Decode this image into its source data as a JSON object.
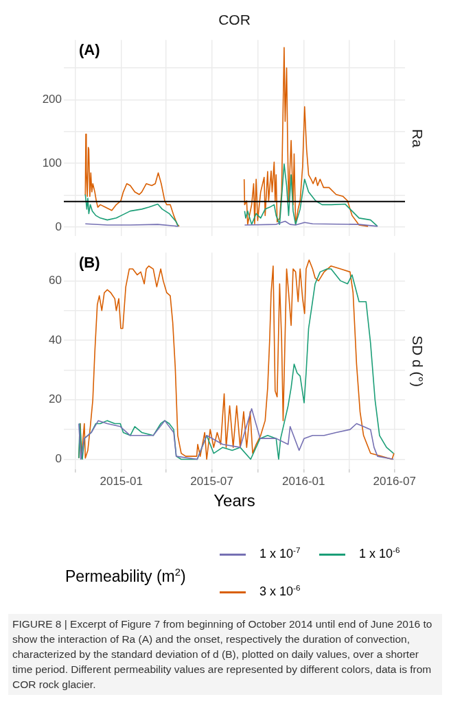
{
  "chart_data": [
    {
      "type": "line",
      "title": "COR",
      "ylabel": "Ra",
      "annotations": [
        "(A)"
      ],
      "tick_labels": "y",
      "grid": true,
      "legend": false,
      "marker": "none",
      "xlim": [
        "2014-09-08",
        "2016-07-22"
      ],
      "ylim": [
        -14,
        294
      ],
      "xticks": [
        {
          "value": "2014-10",
          "label": null
        },
        "2015-01",
        {
          "value": "2015-04",
          "label": null
        },
        "2015-07",
        {
          "value": "2015-10",
          "label": null
        },
        "2016-01",
        {
          "value": "2016-04",
          "label": null
        },
        "2016-07"
      ],
      "yticks": [
        0,
        {
          "value": 50,
          "label": null
        },
        100,
        {
          "value": 150,
          "label": null
        },
        200,
        {
          "value": 250,
          "label": null
        }
      ],
      "ref_lines": [
        {
          "axis": "y",
          "value": 40,
          "color": "#000000"
        }
      ],
      "series": [
        {
          "color": "#7570b3",
          "x": [
            "2014-10-21",
            "2014-12-04",
            "2015-01-19",
            "2015-03-15",
            "2015-04-25",
            "2015-06-01",
            "2015-09-05",
            "2015-11-07",
            "2015-11-25",
            "2015-12-05",
            "2015-12-16",
            "2016-01-03",
            "2016-01-19",
            "2016-04-21",
            "2016-05-28"
          ],
          "values": [
            5,
            3,
            3,
            4,
            1,
            null,
            3,
            4,
            9,
            4,
            3,
            7,
            5,
            4,
            1
          ]
        },
        {
          "color": "#1b9e77",
          "x": [
            "2014-10-21",
            "2014-10-24",
            "2014-10-26",
            "2014-10-28",
            "2014-10-31",
            "2014-11-04",
            "2014-11-11",
            "2014-11-20",
            "2014-12-04",
            "2014-12-22",
            "2015-01-01",
            "2015-01-19",
            "2015-02-11",
            "2015-02-25",
            "2015-03-15",
            "2015-03-24",
            "2015-04-07",
            "2015-04-21",
            "2015-04-25",
            "2015-06-01",
            "2015-09-05",
            "2015-09-07",
            "2015-09-11",
            "2015-09-19",
            "2015-09-28",
            "2015-10-07",
            "2015-10-16",
            "2015-10-25",
            "2015-11-03",
            "2015-11-07",
            "2015-11-14",
            "2015-11-23",
            "2015-11-28",
            "2015-12-02",
            "2015-12-07",
            "2015-12-11",
            "2015-12-16",
            "2015-12-25",
            "2016-01-03",
            "2016-01-11",
            "2016-01-25",
            "2016-02-07",
            "2016-02-26",
            "2016-03-24",
            "2016-04-07",
            "2016-04-21",
            "2016-05-14",
            "2016-05-28"
          ],
          "values": [
            51,
            28,
            45,
            21,
            35,
            25,
            18,
            14,
            11,
            14,
            18,
            25,
            28,
            31,
            36,
            28,
            21,
            8,
            1,
            null,
            25,
            14,
            25,
            4,
            21,
            14,
            28,
            31,
            35,
            18,
            4,
            99,
            65,
            18,
            82,
            25,
            4,
            28,
            75,
            55,
            41,
            35,
            35,
            36,
            25,
            14,
            11,
            1
          ]
        },
        {
          "color": "#d95f02",
          "x": [
            "2014-10-21",
            "2014-10-22",
            "2014-10-23",
            "2014-10-25",
            "2014-10-27",
            "2014-10-28",
            "2014-10-30",
            "2014-11-01",
            "2014-11-03",
            "2014-11-05",
            "2014-11-09",
            "2014-11-12",
            "2014-11-15",
            "2014-11-20",
            "2014-11-30",
            "2014-12-13",
            "2014-12-22",
            "2014-12-31",
            "2015-01-05",
            "2015-01-12",
            "2015-01-19",
            "2015-01-28",
            "2015-02-06",
            "2015-02-11",
            "2015-02-20",
            "2015-03-03",
            "2015-03-10",
            "2015-03-16",
            "2015-03-22",
            "2015-03-29",
            "2015-04-02",
            "2015-04-09",
            "2015-04-16",
            "2015-04-23",
            "2015-04-27",
            "2015-06-01",
            "2015-09-04",
            "2015-09-05",
            "2015-09-09",
            "2015-09-11",
            "2015-09-19",
            "2015-09-23",
            "2015-09-25",
            "2015-09-28",
            "2015-10-01",
            "2015-10-07",
            "2015-10-14",
            "2015-10-16",
            "2015-10-21",
            "2015-10-23",
            "2015-10-28",
            "2015-10-30",
            "2015-11-03",
            "2015-11-05",
            "2015-11-07",
            "2015-11-09",
            "2015-11-14",
            "2015-11-18",
            "2015-11-23",
            "2015-11-25",
            "2015-11-28",
            "2015-11-30",
            "2015-12-02",
            "2015-12-07",
            "2015-12-11",
            "2015-12-13",
            "2015-12-16",
            "2015-12-21",
            "2015-12-25",
            "2015-12-30",
            "2016-01-03",
            "2016-01-07",
            "2016-01-11",
            "2016-01-16",
            "2016-01-20",
            "2016-01-25",
            "2016-01-29",
            "2016-02-03",
            "2016-02-10",
            "2016-02-21",
            "2016-03-06",
            "2016-03-20",
            "2016-03-29",
            "2016-04-07",
            "2016-04-21",
            "2016-05-09"
          ],
          "values": [
            50,
            146,
            88,
            48,
            125,
            122,
            48,
            85,
            55,
            68,
            55,
            41,
            31,
            35,
            31,
            26,
            35,
            41,
            55,
            68,
            65,
            55,
            51,
            55,
            68,
            65,
            68,
            85,
            68,
            41,
            35,
            35,
            18,
            4,
            1,
            null,
            75,
            35,
            41,
            4,
            35,
            68,
            5,
            75,
            10,
            55,
            78,
            18,
            87,
            41,
            88,
            55,
            102,
            41,
            82,
            8,
            14,
            55,
            282,
            166,
            250,
            132,
            41,
            136,
            35,
            115,
            4,
            28,
            41,
            95,
            189,
            122,
            82,
            75,
            68,
            78,
            65,
            75,
            62,
            62,
            51,
            48,
            41,
            18,
            3,
            1
          ]
        }
      ]
    },
    {
      "type": "line",
      "ylabel": "SD d (°)",
      "xlabel": "Years",
      "legend_title": "Permeability (m$^{2}$)",
      "legend": "bottom",
      "grid": true,
      "marker": "none",
      "annotations": [
        "(B)",
        "FIGURE 8 | Excerpt of Figure 7 from beginning of October 2014 until end of June 2016 to show the interaction of Ra (A) and the onset, respectively the duration of convection, characterized by the standard deviation of d (B), plotted on daily values, over a shorter time period. Different permeability values are represented by different colors, data is from COR rock glacier."
      ],
      "xlim": [
        "2014-09-08",
        "2016-07-22"
      ],
      "ylim": [
        -3.3,
        69.5
      ],
      "xticks": [
        {
          "value": "2014-10",
          "label": null
        },
        "2015-01",
        {
          "value": "2015-04",
          "label": null
        },
        "2015-07",
        {
          "value": "2015-10",
          "label": null
        },
        "2016-01",
        {
          "value": "2016-04",
          "label": null
        },
        "2016-07"
      ],
      "yticks": [
        0,
        {
          "value": 10,
          "label": null
        },
        20,
        {
          "value": 30,
          "label": null
        },
        40,
        {
          "value": 50,
          "label": null
        },
        60
      ],
      "series": [
        {
          "name": "1 x 10$^{-7}$",
          "color": "#7570b3",
          "x": [
            "2014-10-08",
            "2014-10-12",
            "2014-10-19",
            "2014-11-02",
            "2014-11-16",
            "2014-12-04",
            "2014-12-30",
            "2015-01-19",
            "2015-03-06",
            "2015-03-29",
            "2015-04-16",
            "2015-04-21",
            "2015-06-02",
            "2015-06-21",
            "2015-07-23",
            "2015-08-27",
            "2015-09-19",
            "2015-10-06",
            "2015-11-07",
            "2015-12-01",
            "2015-12-05",
            "2015-12-23",
            "2016-01-02",
            "2016-01-19",
            "2016-02-11",
            "2016-03-06",
            "2016-04-03",
            "2016-04-16",
            "2016-04-30",
            "2016-05-14",
            "2016-05-21",
            "2016-05-28",
            "2016-06-29"
          ],
          "values": [
            12,
            0,
            7,
            9,
            13,
            12,
            11,
            8,
            8,
            13,
            9,
            1,
            0,
            8,
            5,
            4,
            17,
            7,
            7,
            5,
            11,
            3,
            7,
            8,
            8,
            9,
            10,
            12,
            11,
            10,
            4,
            1,
            0
          ]
        },
        {
          "name": "1 x 10$^{-6}$",
          "color": "#1b9e77",
          "x": [
            "2014-10-08",
            "2014-10-10",
            "2014-10-15",
            "2014-10-19",
            "2014-10-26",
            "2014-11-02",
            "2014-11-11",
            "2014-11-20",
            "2014-12-04",
            "2014-12-19",
            "2014-12-30",
            "2015-01-05",
            "2015-01-19",
            "2015-01-28",
            "2015-02-11",
            "2015-03-06",
            "2015-03-21",
            "2015-03-29",
            "2015-04-07",
            "2015-04-16",
            "2015-04-21",
            "2015-05-01",
            "2015-06-02",
            "2015-06-21",
            "2015-07-05",
            "2015-07-23",
            "2015-08-11",
            "2015-08-27",
            "2015-09-17",
            "2015-10-06",
            "2015-10-21",
            "2015-11-07",
            "2015-11-12",
            "2015-11-16",
            "2015-12-01",
            "2015-12-07",
            "2015-12-13",
            "2015-12-19",
            "2015-12-25",
            "2016-01-02",
            "2016-01-06",
            "2016-01-11",
            "2016-01-18",
            "2016-01-24",
            "2016-02-03",
            "2016-02-17",
            "2016-02-25",
            "2016-03-15",
            "2016-03-29",
            "2016-04-07",
            "2016-04-21",
            "2016-05-05",
            "2016-05-14",
            "2016-05-23",
            "2016-06-01",
            "2016-06-15",
            "2016-06-29"
          ],
          "values": [
            0.4,
            12,
            0,
            7,
            8,
            9,
            12,
            12,
            13,
            12,
            12,
            9,
            8,
            11,
            9,
            8,
            12,
            13,
            12,
            10,
            1,
            0,
            0,
            8,
            2,
            4,
            3,
            4,
            0,
            7,
            8,
            7,
            0,
            7,
            18,
            24,
            32,
            29,
            28,
            19,
            29,
            44,
            52,
            59,
            63,
            64,
            64,
            60,
            59,
            62,
            53,
            53,
            39,
            20,
            8,
            4,
            2
          ]
        },
        {
          "name": "3 x 10$^{-6}$",
          "color": "#d95f02",
          "x": [
            "2014-10-08",
            "2014-10-11",
            "2014-10-13",
            "2014-10-19",
            "2014-10-21",
            "2014-10-26",
            "2014-10-31",
            "2014-11-05",
            "2014-11-09",
            "2014-11-14",
            "2014-11-18",
            "2014-11-23",
            "2014-11-28",
            "2014-12-04",
            "2014-12-11",
            "2014-12-19",
            "2014-12-22",
            "2014-12-27",
            "2014-12-31",
            "2015-01-04",
            "2015-01-10",
            "2015-01-17",
            "2015-01-24",
            "2015-02-02",
            "2015-02-09",
            "2015-02-16",
            "2015-02-20",
            "2015-02-25",
            "2015-03-06",
            "2015-03-13",
            "2015-03-21",
            "2015-03-26",
            "2015-04-02",
            "2015-04-09",
            "2015-04-14",
            "2015-04-19",
            "2015-04-24",
            "2015-05-01",
            "2015-05-10",
            "2015-06-01",
            "2015-06-03",
            "2015-06-08",
            "2015-06-17",
            "2015-06-21",
            "2015-06-28",
            "2015-07-05",
            "2015-07-12",
            "2015-07-19",
            "2015-07-26",
            "2015-07-30",
            "2015-08-06",
            "2015-08-13",
            "2015-08-20",
            "2015-08-27",
            "2015-09-03",
            "2015-09-09",
            "2015-09-16",
            "2015-09-21",
            "2015-09-28",
            "2015-10-07",
            "2015-10-16",
            "2015-10-21",
            "2015-10-25",
            "2015-10-28",
            "2015-11-01",
            "2015-11-05",
            "2015-11-09",
            "2015-11-14",
            "2015-11-18",
            "2015-11-21",
            "2015-11-28",
            "2015-12-02",
            "2015-12-07",
            "2015-12-11",
            "2015-12-16",
            "2015-12-21",
            "2015-12-25",
            "2015-12-30",
            "2016-01-03",
            "2016-01-06",
            "2016-01-12",
            "2016-01-19",
            "2016-01-24",
            "2016-01-31",
            "2016-02-11",
            "2016-02-25",
            "2016-03-15",
            "2016-04-03",
            "2016-04-09",
            "2016-04-16",
            "2016-04-23",
            "2016-04-30",
            "2016-05-14",
            "2016-06-06",
            "2016-06-26",
            "2016-06-30"
          ],
          "values": [
            0.4,
            12,
            0.4,
            12,
            0.4,
            3,
            11,
            20,
            36,
            52,
            55,
            50,
            56,
            57,
            56,
            54,
            50,
            54,
            44,
            44,
            58,
            64,
            64,
            62,
            63,
            59,
            64,
            65,
            64,
            58,
            64,
            60,
            56,
            55,
            46,
            31,
            8,
            2,
            1,
            1,
            5,
            1,
            9,
            0,
            10,
            4,
            9,
            5,
            22,
            4,
            18,
            4,
            18,
            4,
            16,
            4,
            16,
            2,
            5,
            8,
            13,
            24,
            40,
            56,
            65,
            23,
            21,
            59,
            40,
            13,
            64,
            56,
            45,
            64,
            63,
            53,
            64,
            54,
            49,
            64,
            67,
            64,
            61,
            60,
            63,
            65,
            64,
            63,
            56,
            32,
            16,
            8,
            2,
            1,
            0,
            2
          ]
        }
      ]
    }
  ]
}
